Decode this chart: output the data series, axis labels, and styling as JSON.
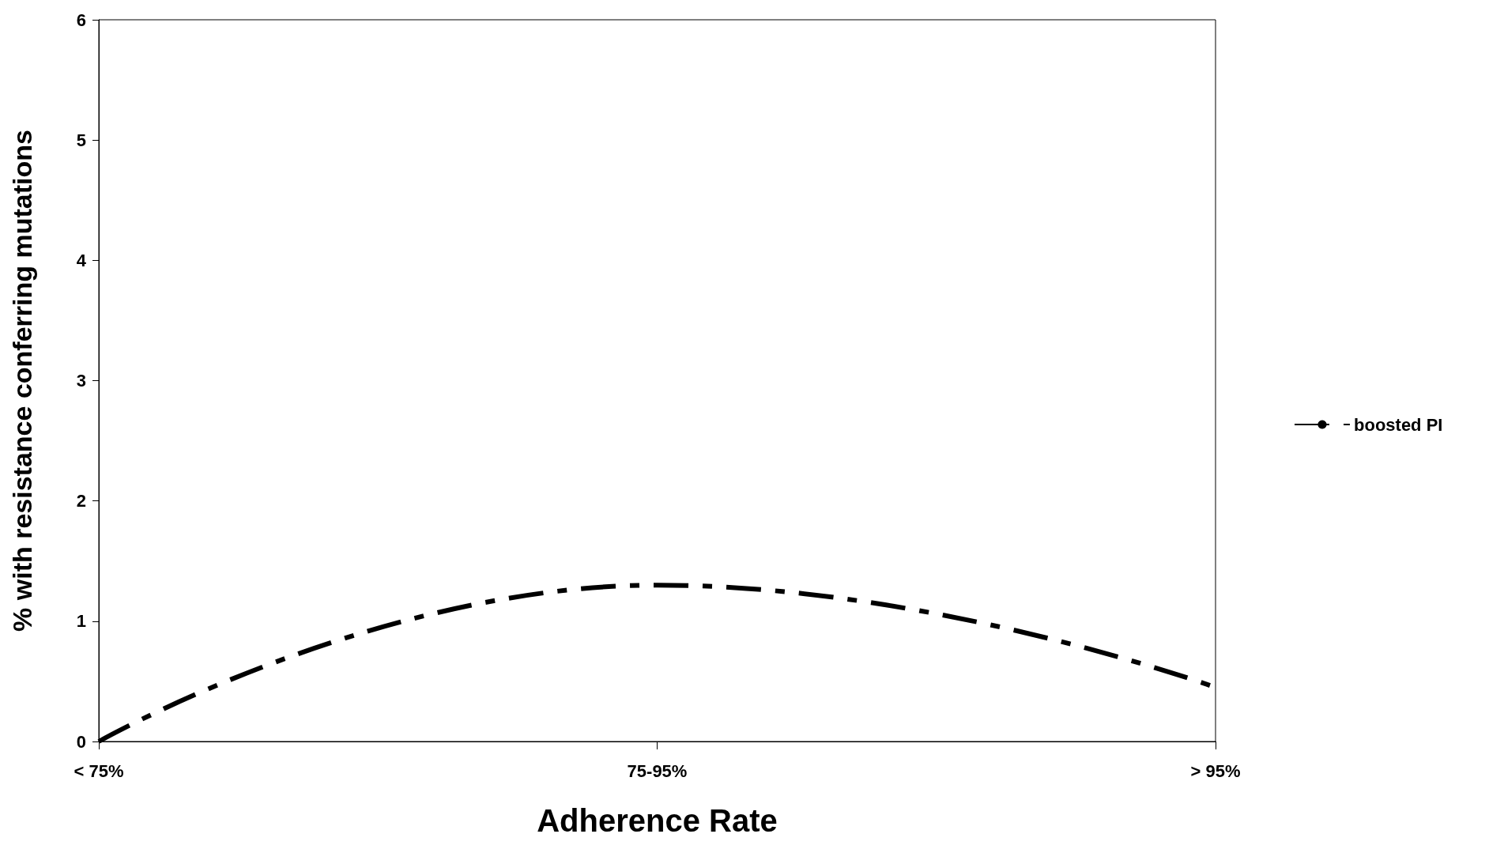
{
  "chart_data": {
    "type": "line",
    "xlabel": "Adherence Rate",
    "ylabel": "% with resistance conferring mutations",
    "categories": [
      "< 75%",
      "75-95%",
      "> 95%"
    ],
    "series": [
      {
        "name": "boosted PI",
        "color": "#000000",
        "values": [
          0,
          1.3,
          0.45
        ]
      }
    ],
    "ylim": [
      0,
      6
    ],
    "yticks": [
      0,
      1,
      2,
      3,
      4,
      5,
      6
    ],
    "grid": false,
    "legend": "right",
    "marker": "none",
    "line_style": "dashed"
  }
}
